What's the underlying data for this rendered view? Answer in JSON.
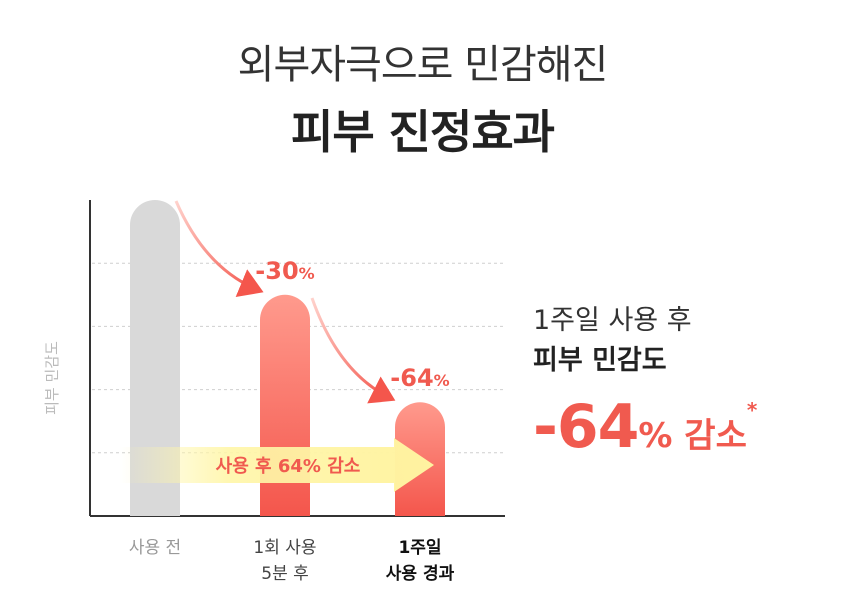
{
  "header": {
    "title_line1": "외부자극으로 민감해진",
    "title_line2": "피부 진정효과"
  },
  "chart_data": {
    "type": "bar",
    "ylabel": "피부 민감도",
    "categories": [
      {
        "line1": "사용 전",
        "line2": ""
      },
      {
        "line1": "1회 사용",
        "line2": "5분 후"
      },
      {
        "line1": "1주일",
        "line2": "사용 경과"
      }
    ],
    "values": [
      100,
      70,
      36
    ],
    "change_labels": {
      "number": [
        "",
        "-30",
        "-64"
      ],
      "unit": "%"
    },
    "arrow_label": "사용 후 64% 감소",
    "grid": true,
    "colors": {
      "bar_before": "#d9d9d9",
      "bar_after_gradient": [
        "#ff9a8d",
        "#f4564c"
      ],
      "accent": "#f05a4f",
      "arrow": "#fff6a8"
    }
  },
  "side": {
    "line1": "1주일 사용 후",
    "line2": "피부 민감도",
    "big_value": "-64",
    "unit_text": "% 감소",
    "footnote_mark": "*"
  }
}
